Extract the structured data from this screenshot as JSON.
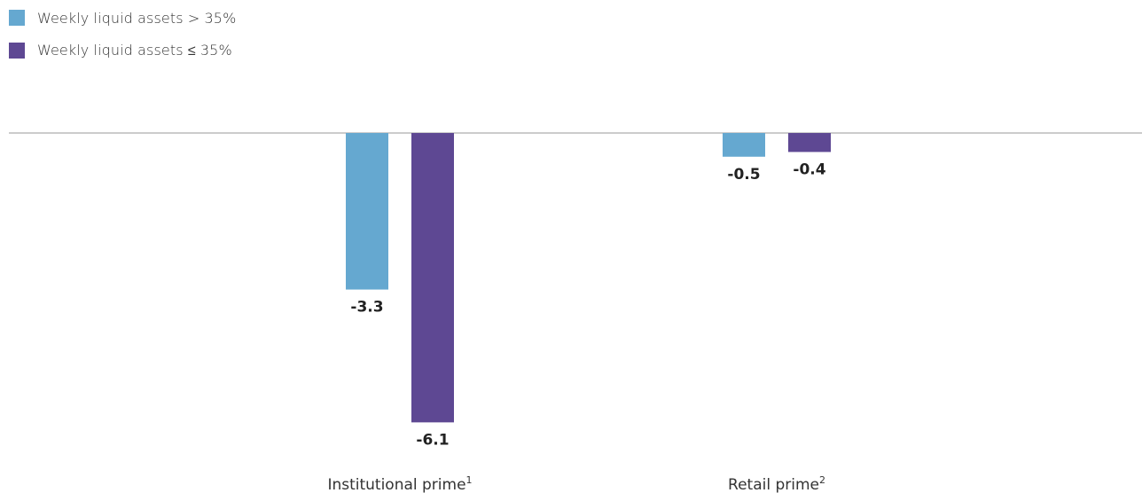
{
  "chart_data": {
    "type": "bar",
    "title": "",
    "xlabel": "",
    "ylabel": "",
    "categories": [
      "Institutional prime",
      "Retail prime"
    ],
    "category_footnotes": [
      "1",
      "2"
    ],
    "series": [
      {
        "name": "Weekly liquid assets > 35%",
        "color": "#65a8d0",
        "values": [
          -3.3,
          -0.5
        ]
      },
      {
        "name": "Weekly liquid assets ≤ 35%",
        "color": "#5e4893",
        "values": [
          -6.1,
          -0.4
        ]
      }
    ],
    "ylim": [
      -6.1,
      0
    ],
    "grid": false,
    "legend_position": "top-left",
    "data_labels": true
  }
}
